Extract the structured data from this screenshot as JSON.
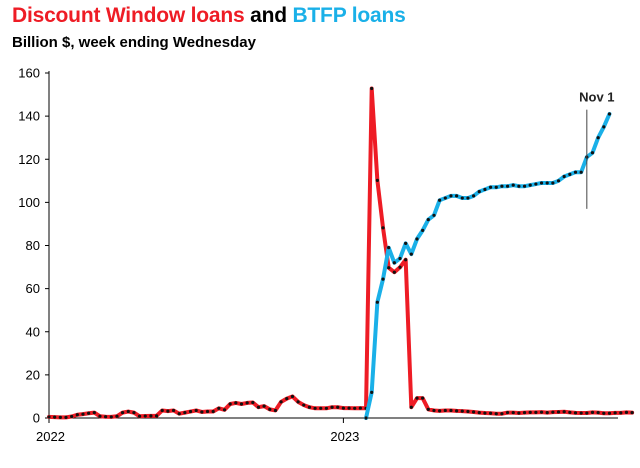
{
  "header": {
    "title_part1": "Discount Window loans",
    "title_part2": " and ",
    "title_part3": "BTFP loans",
    "subtitle": "Billion $, week ending Wednesday"
  },
  "colors": {
    "discount_window": "#ee1c25",
    "btfp": "#1ab0e8",
    "title_and": "#000000",
    "axis": "#000000",
    "marker": "#111111"
  },
  "chart_data": {
    "type": "line",
    "title": "Discount Window loans and BTFP loans",
    "subtitle": "Billion $, week ending Wednesday",
    "xlabel": "",
    "ylabel": "",
    "ylim": [
      0,
      160
    ],
    "yticks": [
      0,
      20,
      40,
      60,
      80,
      100,
      120,
      140,
      160
    ],
    "x_tick_labels": [
      {
        "label": "2022",
        "week": 0
      },
      {
        "label": "2023",
        "week": 52
      }
    ],
    "grid": false,
    "annotation": {
      "label": "Nov 1",
      "week": 95,
      "y_range": [
        97,
        143
      ]
    },
    "series": [
      {
        "name": "Discount Window loans",
        "color": "#ee1c25",
        "start_week": 0,
        "values": [
          0.5,
          0.4,
          0.3,
          0.3,
          0.7,
          1.5,
          1.8,
          2.2,
          2.5,
          0.8,
          0.6,
          0.5,
          0.8,
          2.5,
          3,
          2.5,
          0.8,
          0.9,
          1,
          1,
          3.5,
          3.2,
          3.5,
          2,
          2.5,
          3,
          3.5,
          2.8,
          3,
          3,
          4.5,
          3.8,
          6.5,
          7,
          6.5,
          7,
          7.2,
          5,
          5.5,
          4,
          3.5,
          7.5,
          9,
          10,
          7.5,
          6,
          5,
          4.5,
          4.5,
          4.5,
          5,
          5,
          4.6,
          4.6,
          4.5,
          4.6,
          4.5,
          152.8,
          110.2,
          88.2,
          69.7,
          67.6,
          69.9,
          73.4,
          5,
          9.2,
          9.2,
          4,
          3.5,
          3.3,
          3.5,
          3.5,
          3.3,
          3.2,
          3,
          2.8,
          2.5,
          2.3,
          2.2,
          2,
          2,
          2.5,
          2.5,
          2.3,
          2.5,
          2.6,
          2.6,
          2.7,
          2.5,
          2.7,
          2.8,
          2.9,
          2.6,
          2.4,
          2.3,
          2.3,
          2.6,
          2.5,
          2.2,
          2.2,
          2.4,
          2.4,
          2.6,
          2.5
        ]
      },
      {
        "name": "BTFP loans",
        "color": "#1ab0e8",
        "start_week": 56,
        "values": [
          0,
          11.9,
          53.7,
          64.4,
          79,
          72,
          74,
          81,
          76,
          83,
          87,
          92,
          94,
          101,
          102,
          103,
          103,
          102,
          102,
          103,
          105,
          106,
          107,
          107,
          107.5,
          107.5,
          108,
          107.5,
          107.5,
          108,
          108.5,
          109,
          109,
          109,
          110,
          112,
          113,
          114,
          114,
          121,
          123,
          130,
          135,
          141
        ]
      }
    ]
  }
}
